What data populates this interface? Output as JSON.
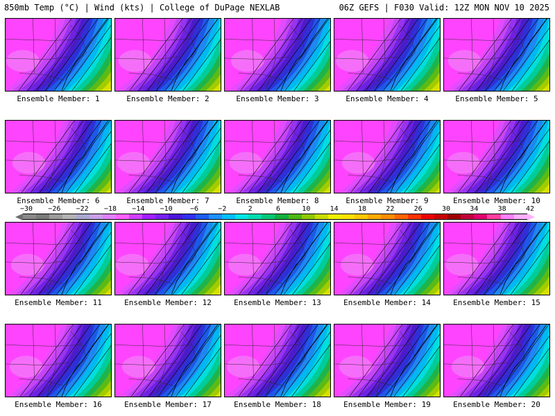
{
  "header": {
    "left": "850mb Temp (°C) | Wind (kts) | College of DuPage NEXLAB",
    "right": "06Z GEFS | F030 Valid: 12Z MON NOV 10 2025"
  },
  "panels": [
    {
      "label": "Ensemble Member: 1"
    },
    {
      "label": "Ensemble Member: 2"
    },
    {
      "label": "Ensemble Member: 3"
    },
    {
      "label": "Ensemble Member: 4"
    },
    {
      "label": "Ensemble Member: 5"
    },
    {
      "label": "Ensemble Member: 6"
    },
    {
      "label": "Ensemble Member: 7"
    },
    {
      "label": "Ensemble Member: 8"
    },
    {
      "label": "Ensemble Member: 9"
    },
    {
      "label": "Ensemble Member: 10"
    },
    {
      "label": "Ensemble Member: 11"
    },
    {
      "label": "Ensemble Member: 12"
    },
    {
      "label": "Ensemble Member: 13"
    },
    {
      "label": "Ensemble Member: 14"
    },
    {
      "label": "Ensemble Member: 15"
    },
    {
      "label": "Ensemble Member: 16"
    },
    {
      "label": "Ensemble Member: 17"
    },
    {
      "label": "Ensemble Member: 18"
    },
    {
      "label": "Ensemble Member: 19"
    },
    {
      "label": "Ensemble Member: 20"
    }
  ],
  "colorbar": {
    "labels": [
      "−30",
      "−26",
      "−22",
      "−18",
      "−14",
      "−10",
      "−6",
      "−2",
      "2",
      "6",
      "10",
      "14",
      "18",
      "22",
      "26",
      "30",
      "34",
      "38",
      "42"
    ],
    "colors": [
      "#8a8a8a",
      "#7a7a7a",
      "#9c9c9c",
      "#b2b2b2",
      "#a8a8d0",
      "#c8a0e8",
      "#e080ff",
      "#ff60ff",
      "#d040ff",
      "#a020ff",
      "#7820f0",
      "#4b16d8",
      "#3030f0",
      "#1c5cf0",
      "#1e90ff",
      "#00bfff",
      "#00e5e5",
      "#00dcb0",
      "#00c878",
      "#10b040",
      "#4cb814",
      "#90c800",
      "#c8dc00",
      "#f0f000",
      "#ffe100",
      "#ffc800",
      "#ffaa00",
      "#ff8c00",
      "#ff6400",
      "#ff3200",
      "#f00000",
      "#c80000",
      "#a00000",
      "#c0003c",
      "#e0006e",
      "#ff40a0",
      "#ff80ff",
      "#ffb0ff"
    ]
  }
}
